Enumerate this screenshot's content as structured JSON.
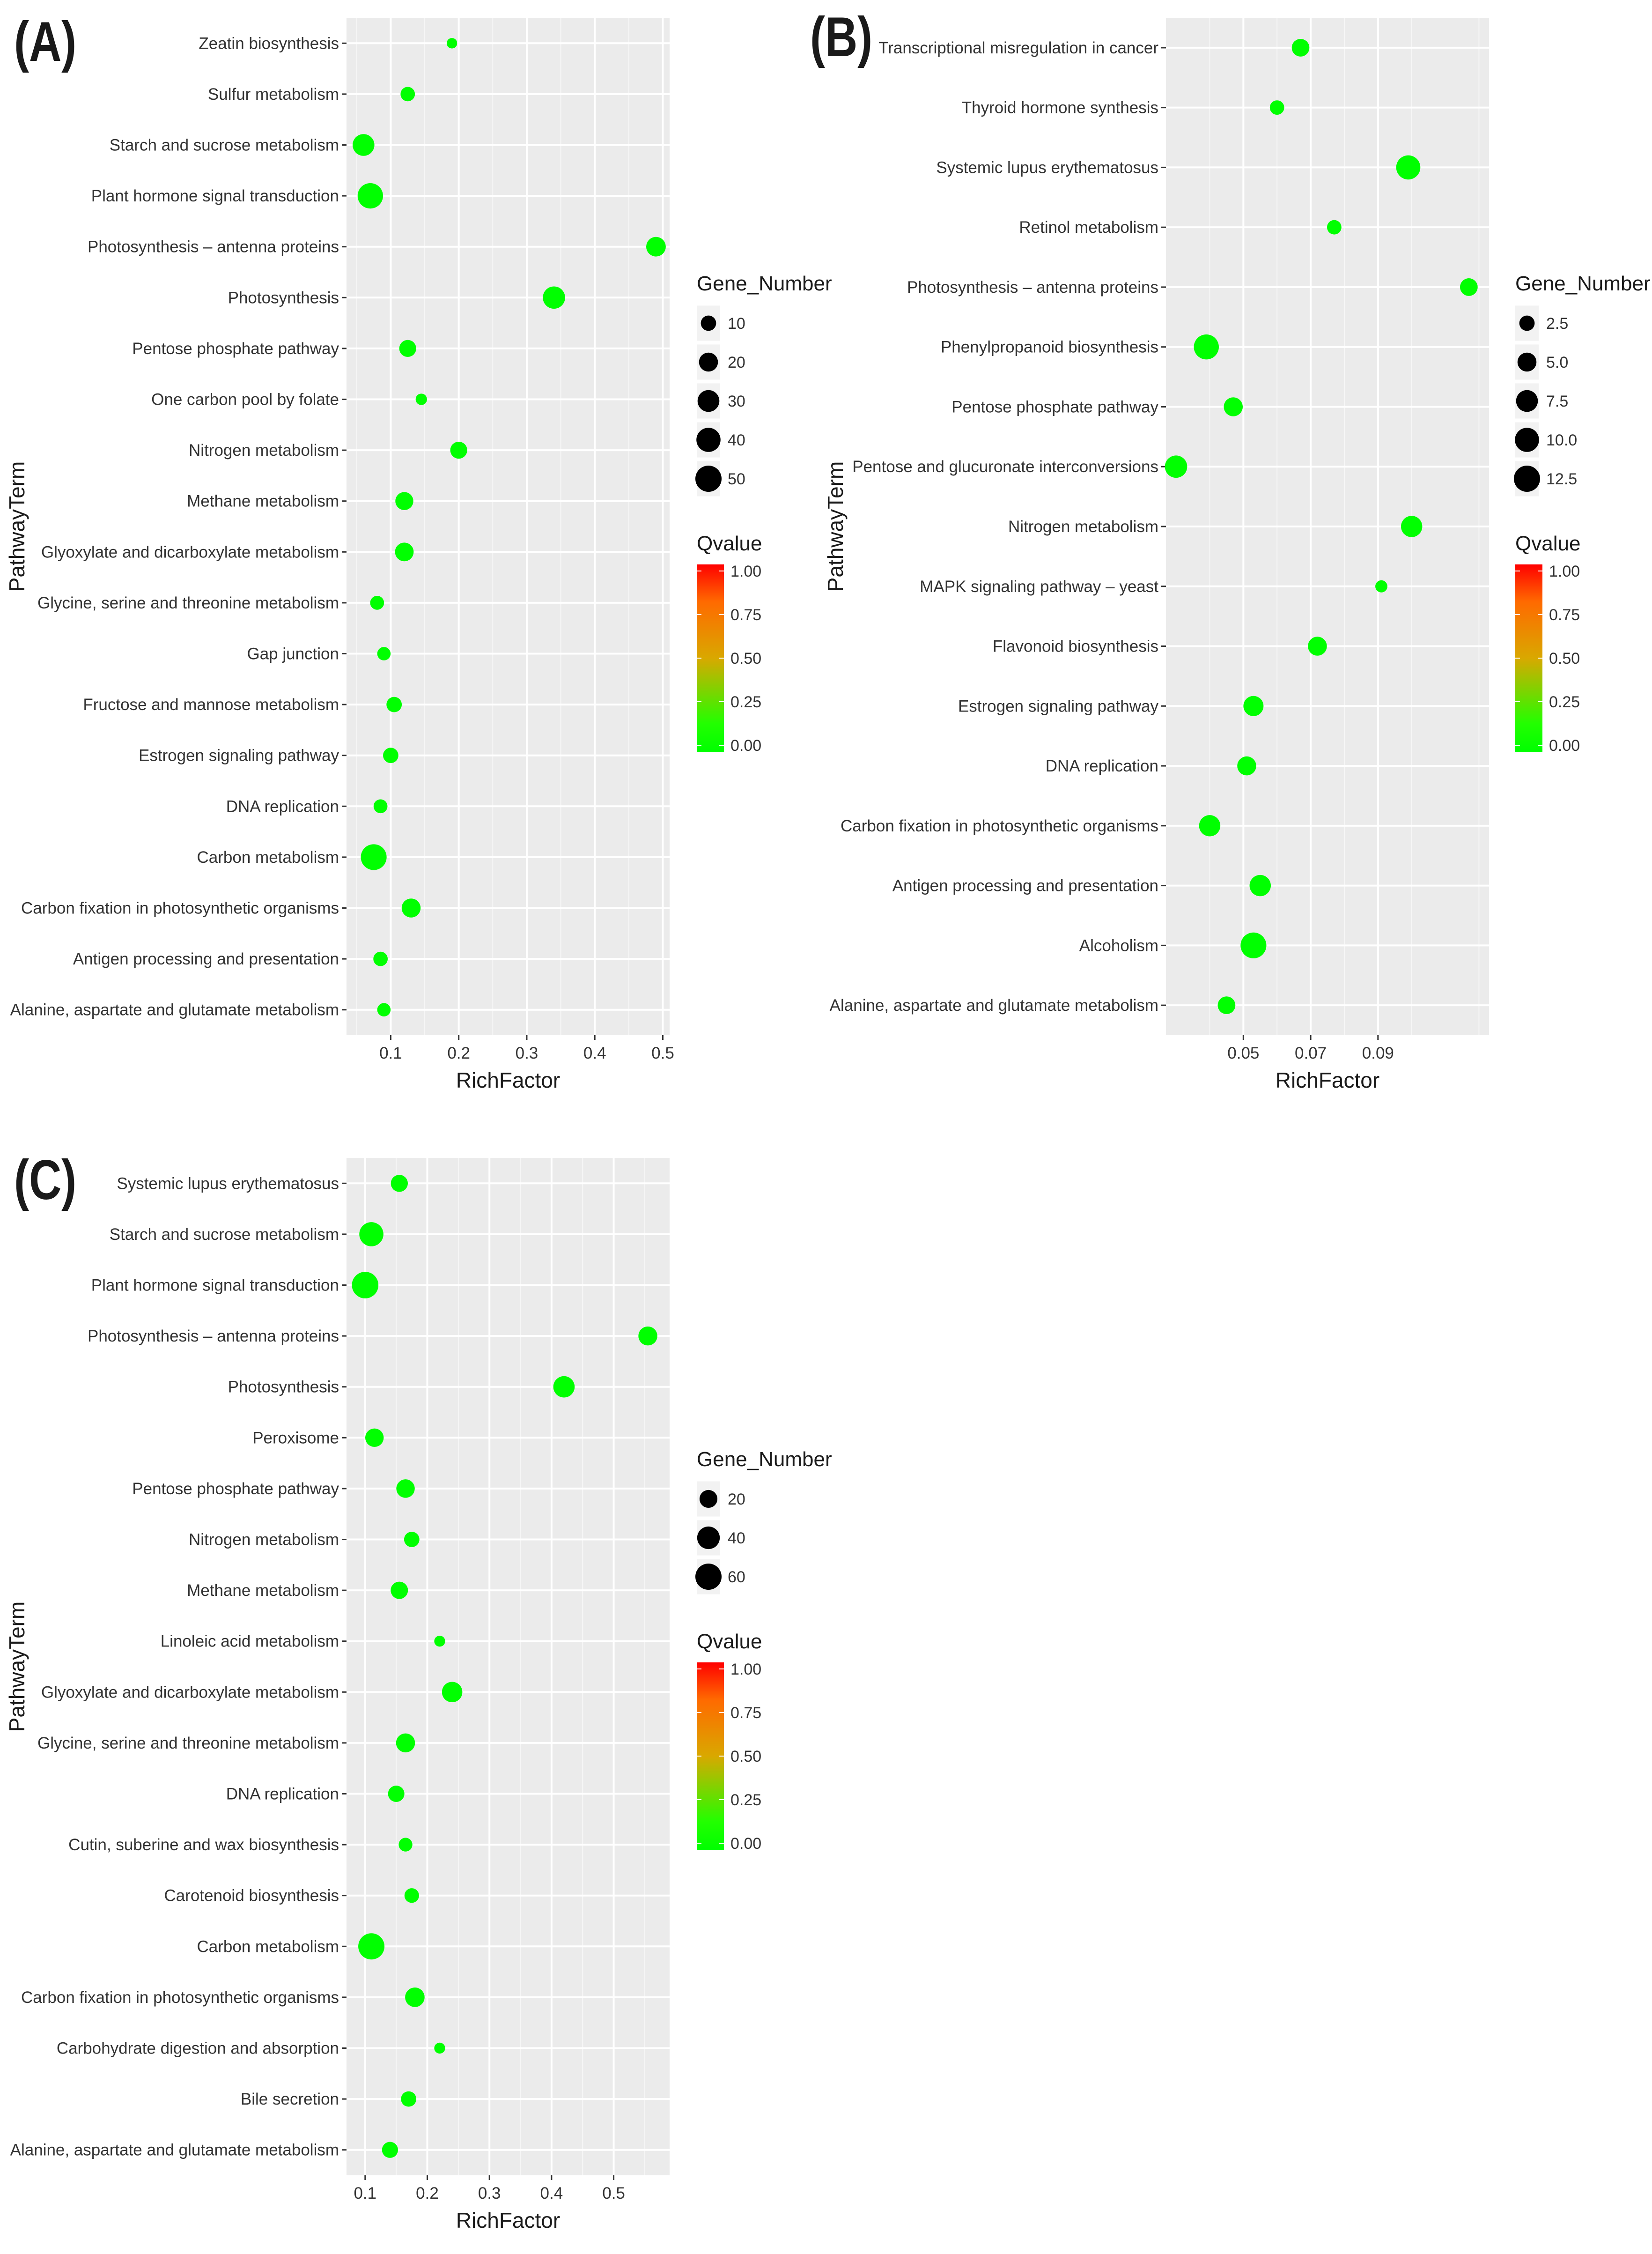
{
  "chart_data": [
    {
      "panel": "(A)",
      "type": "scatter",
      "xlabel": "RichFactor",
      "ylabel": "PathwayTerm",
      "xlim": [
        0.035,
        0.51
      ],
      "xticks": [
        0.1,
        0.2,
        0.3,
        0.4,
        0.5
      ],
      "xtick_labels": [
        "0.1",
        "0.2",
        "0.3",
        "0.4",
        "0.5"
      ],
      "size_legend": {
        "title": "Gene_Number",
        "values": [
          10,
          20,
          30,
          40,
          50
        ],
        "labels": [
          "10",
          "20",
          "30",
          "40",
          "50"
        ],
        "max": 50
      },
      "color_legend": {
        "title": "Qvalue",
        "labels": [
          "1.00",
          "0.75",
          "0.50",
          "0.25",
          "0.00"
        ],
        "low_color": "#00ff00",
        "mid_color": "#ffa500",
        "high_color": "#ff0000"
      },
      "terms": [
        "Zeatin biosynthesis",
        "Sulfur metabolism",
        "Starch and sucrose metabolism",
        "Plant hormone signal transduction",
        "Photosynthesis – antenna proteins",
        "Photosynthesis",
        "Pentose phosphate pathway",
        "One carbon pool by folate",
        "Nitrogen metabolism",
        "Methane metabolism",
        "Glyoxylate and dicarboxylate metabolism",
        "Glycine, serine and threonine metabolism",
        "Gap junction",
        "Fructose and mannose metabolism",
        "Estrogen signaling pathway",
        "DNA replication",
        "Carbon metabolism",
        "Carbon fixation in photosynthetic organisms",
        "Antigen processing and presentation",
        "Alanine, aspartate and glutamate metabolism"
      ],
      "rich_factor": [
        0.19,
        0.125,
        0.06,
        0.07,
        0.49,
        0.34,
        0.125,
        0.145,
        0.2,
        0.12,
        0.12,
        0.08,
        0.09,
        0.105,
        0.1,
        0.085,
        0.075,
        0.13,
        0.085,
        0.09
      ],
      "gene_number": [
        2,
        8,
        30,
        46,
        22,
        32,
        14,
        3,
        14,
        17,
        19,
        7,
        6,
        10,
        10,
        7,
        48,
        20,
        8,
        6
      ],
      "qvalue": [
        0,
        0,
        0,
        0,
        0,
        0,
        0,
        0,
        0,
        0,
        0,
        0,
        0,
        0,
        0,
        0,
        0,
        0,
        0,
        0
      ]
    },
    {
      "panel": "(B)",
      "type": "scatter",
      "xlabel": "RichFactor",
      "ylabel": "PathwayTerm",
      "xlim": [
        0.027,
        0.123
      ],
      "xticks": [
        0.05,
        0.07,
        0.09
      ],
      "xtick_labels": [
        "0.05",
        "0.07",
        "0.09"
      ],
      "size_legend": {
        "title": "Gene_Number",
        "values": [
          2.5,
          5.0,
          7.5,
          10.0,
          12.5
        ],
        "labels": [
          "2.5",
          "5.0",
          "7.5",
          "10.0",
          "12.5"
        ],
        "max": 12.5
      },
      "color_legend": {
        "title": "Qvalue",
        "labels": [
          "1.00",
          "0.75",
          "0.50",
          "0.25",
          "0.00"
        ],
        "low_color": "#00ff00",
        "mid_color": "#ffa500",
        "high_color": "#ff0000"
      },
      "terms": [
        "Transcriptional misregulation in cancer",
        "Thyroid hormone synthesis",
        "Systemic lupus erythematosus",
        "Retinol metabolism",
        "Photosynthesis – antenna proteins",
        "Phenylpropanoid biosynthesis",
        "Pentose phosphate pathway",
        "Pentose and glucuronate interconversions",
        "Nitrogen metabolism",
        "MAPK signaling pathway – yeast",
        "Flavonoid biosynthesis",
        "Estrogen signaling pathway",
        "DNA replication",
        "Carbon fixation in photosynthetic organisms",
        "Antigen processing and presentation",
        "Alcoholism",
        "Alanine, aspartate and glutamate metabolism"
      ],
      "rich_factor": [
        0.067,
        0.06,
        0.099,
        0.077,
        0.117,
        0.039,
        0.047,
        0.03,
        0.1,
        0.091,
        0.072,
        0.053,
        0.051,
        0.04,
        0.055,
        0.053,
        0.045
      ],
      "gene_number": [
        4,
        2,
        10,
        2,
        4,
        11,
        5,
        8,
        7,
        1,
        5,
        6,
        5,
        7,
        7,
        12,
        4
      ],
      "qvalue": [
        0,
        0,
        0,
        0,
        0,
        0,
        0,
        0,
        0,
        0,
        0,
        0,
        0,
        0,
        0,
        0,
        0
      ]
    },
    {
      "panel": "(C)",
      "type": "scatter",
      "xlabel": "RichFactor",
      "ylabel": "PathwayTerm",
      "xlim": [
        0.07,
        0.59
      ],
      "xticks": [
        0.1,
        0.2,
        0.3,
        0.4,
        0.5
      ],
      "xtick_labels": [
        "0.1",
        "0.2",
        "0.3",
        "0.4",
        "0.5"
      ],
      "size_legend": {
        "title": "Gene_Number",
        "values": [
          20,
          40,
          60
        ],
        "labels": [
          "20",
          "40",
          "60"
        ],
        "max": 60
      },
      "color_legend": {
        "title": "Qvalue",
        "labels": [
          "1.00",
          "0.75",
          "0.50",
          "0.25",
          "0.00"
        ],
        "low_color": "#00ff00",
        "mid_color": "#ffa500",
        "high_color": "#ff0000"
      },
      "terms": [
        "Systemic lupus erythematosus",
        "Starch and sucrose metabolism",
        "Plant hormone signal transduction",
        "Photosynthesis – antenna proteins",
        "Photosynthesis",
        "Peroxisome",
        "Pentose phosphate pathway",
        "Nitrogen metabolism",
        "Methane metabolism",
        "Linoleic acid metabolism",
        "Glyoxylate and dicarboxylate metabolism",
        "Glycine, serine and threonine metabolism",
        "DNA replication",
        "Cutin, suberine and wax biosynthesis",
        "Carotenoid biosynthesis",
        "Carbon metabolism",
        "Carbon fixation in photosynthetic organisms",
        "Carbohydrate digestion and absorption",
        "Bile secretion",
        "Alanine, aspartate and glutamate metabolism"
      ],
      "rich_factor": [
        0.155,
        0.11,
        0.1,
        0.555,
        0.42,
        0.115,
        0.165,
        0.175,
        0.155,
        0.22,
        0.24,
        0.165,
        0.15,
        0.165,
        0.175,
        0.11,
        0.18,
        0.22,
        0.17,
        0.14
      ],
      "gene_number": [
        17,
        48,
        62,
        24,
        34,
        22,
        22,
        12,
        18,
        3,
        30,
        24,
        15,
        8,
        10,
        60,
        26,
        3,
        12,
        14
      ],
      "qvalue": [
        0,
        0,
        0,
        0,
        0,
        0,
        0,
        0,
        0,
        0,
        0,
        0,
        0,
        0,
        0,
        0,
        0,
        0,
        0,
        0
      ]
    }
  ]
}
